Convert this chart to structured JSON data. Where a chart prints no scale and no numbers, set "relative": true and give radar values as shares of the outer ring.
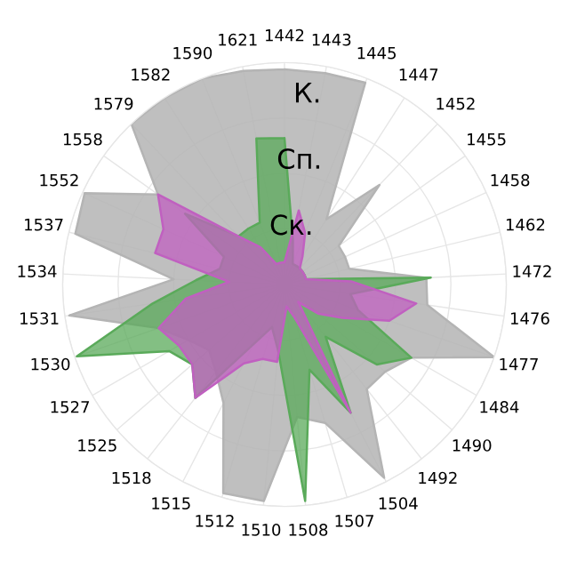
{
  "chart_data": {
    "type": "radar",
    "relative": true,
    "grid": true,
    "legend": false,
    "categories": [
      "1442",
      "1443",
      "1445",
      "1447",
      "1452",
      "1455",
      "1458",
      "1462",
      "1472",
      "1476",
      "1477",
      "1484",
      "1490",
      "1492",
      "1504",
      "1507",
      "1508",
      "1510",
      "1512",
      "1515",
      "1518",
      "1525",
      "1527",
      "1530",
      "1531",
      "1534",
      "1537",
      "1552",
      "1558",
      "1579",
      "1582",
      "1590",
      "1621"
    ],
    "series": [
      {
        "name": "К.",
        "color": "#b4b4b4",
        "values": [
          0.97,
          0.97,
          0.98,
          0.35,
          0.62,
          0.3,
          0.3,
          0.3,
          0.64,
          0.65,
          1.0,
          0.66,
          0.6,
          0.6,
          0.98,
          0.65,
          0.6,
          0.98,
          0.98,
          0.6,
          0.5,
          0.45,
          0.5,
          0.6,
          0.98,
          0.5,
          0.97,
          0.99,
          0.7,
          1.0,
          1.0,
          1.0,
          0.98
        ]
      },
      {
        "name": "Сп.",
        "color": "#5aaa5a",
        "values": [
          0.66,
          0.2,
          0.1,
          0.1,
          0.1,
          0.1,
          0.1,
          0.1,
          0.66,
          0.3,
          0.35,
          0.66,
          0.55,
          0.3,
          0.65,
          0.4,
          0.98,
          0.3,
          0.2,
          0.3,
          0.65,
          0.55,
          0.6,
          0.99,
          0.6,
          0.4,
          0.3,
          0.3,
          0.55,
          0.3,
          0.3,
          0.3,
          0.67
        ]
      },
      {
        "name": "Ск.",
        "color": "#c060c0",
        "values": [
          0.1,
          0.34,
          0.25,
          0.15,
          0.1,
          0.1,
          0.1,
          0.1,
          0.3,
          0.6,
          0.5,
          0.3,
          0.2,
          0.1,
          0.65,
          0.15,
          0.1,
          0.35,
          0.35,
          0.4,
          0.65,
          0.55,
          0.55,
          0.6,
          0.45,
          0.25,
          0.6,
          0.6,
          0.7,
          0.3,
          0.2,
          0.1,
          0.1
        ]
      }
    ]
  }
}
